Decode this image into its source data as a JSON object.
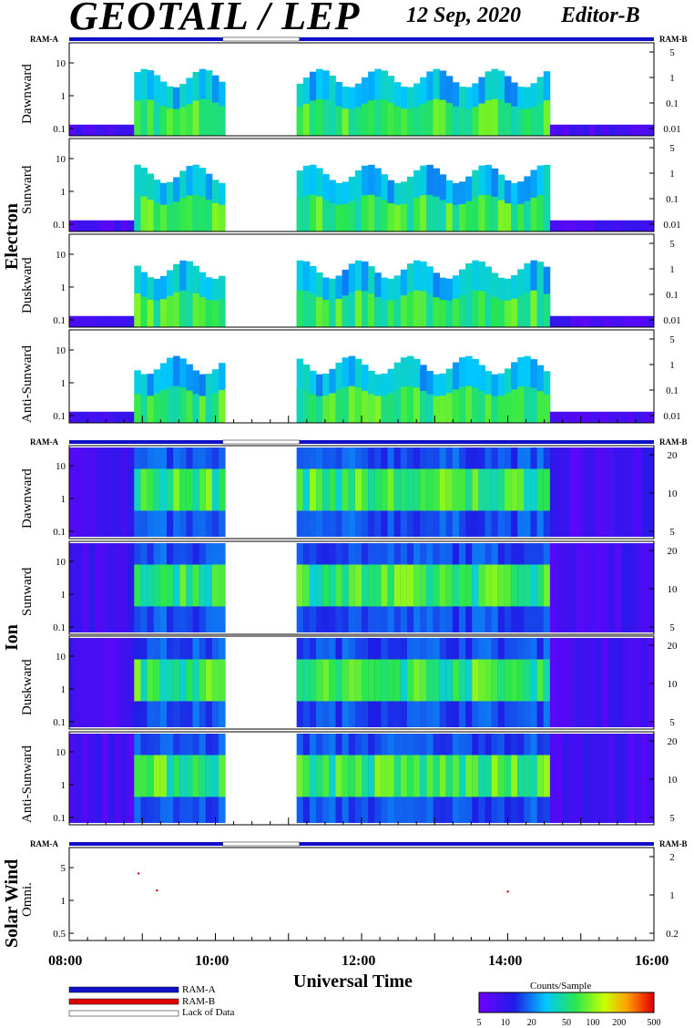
{
  "header": {
    "title": "GEOTAIL / LEP",
    "date": "12 Sep, 2020",
    "editor": "Editor-B"
  },
  "ram": {
    "a": "RAM-A",
    "b": "RAM-B",
    "lack": "Lack of Data"
  },
  "groups": {
    "electron": "Electron",
    "ion": "Ion",
    "sw": "Solar Wind"
  },
  "panels": {
    "electron": [
      "Dawnward",
      "Sunward",
      "Duskward",
      "Anti-Sunward"
    ],
    "ion": [
      "Dawnward",
      "Sunward",
      "Duskward",
      "Anti-Sunward"
    ],
    "sw": "Omni."
  },
  "axes": {
    "left_log": [
      "10",
      "1",
      "0.1"
    ],
    "left_sw": [
      "5",
      "1",
      "0.5"
    ],
    "right_electron": [
      "5",
      "1",
      "0.1",
      "0.01"
    ],
    "right_ion": [
      "20",
      "10",
      "5"
    ],
    "right_sw": [
      "2",
      "1",
      "0.2"
    ],
    "x_ticks": [
      "08:00",
      "10:00",
      "12:00",
      "14:00",
      "16:00"
    ],
    "x_label": "Universal Time"
  },
  "colorbar": {
    "title": "Counts/Sample",
    "labels": [
      "5",
      "10",
      "20",
      "50",
      "100",
      "200",
      "500"
    ]
  },
  "colors": {
    "ram_a": "#1010c8",
    "ram_b": "#e00000",
    "lack": "#ffffff"
  },
  "chart_data": {
    "type": "heatmap",
    "x_range_hours": [
      8,
      16
    ],
    "gap_hours": [
      10.1,
      11.15
    ],
    "electron_active_hours": [
      [
        8.9,
        10.1
      ],
      [
        11.15,
        14.55
      ]
    ],
    "ion_active_hours": [
      [
        8.9,
        10.1
      ],
      [
        11.15,
        14.55
      ]
    ],
    "solar_wind_points": [
      {
        "x_hour": 8.95,
        "y": 4.5
      },
      {
        "x_hour": 9.2,
        "y": 2.3
      },
      {
        "x_hour": 14.0,
        "y": 2.2
      }
    ]
  }
}
